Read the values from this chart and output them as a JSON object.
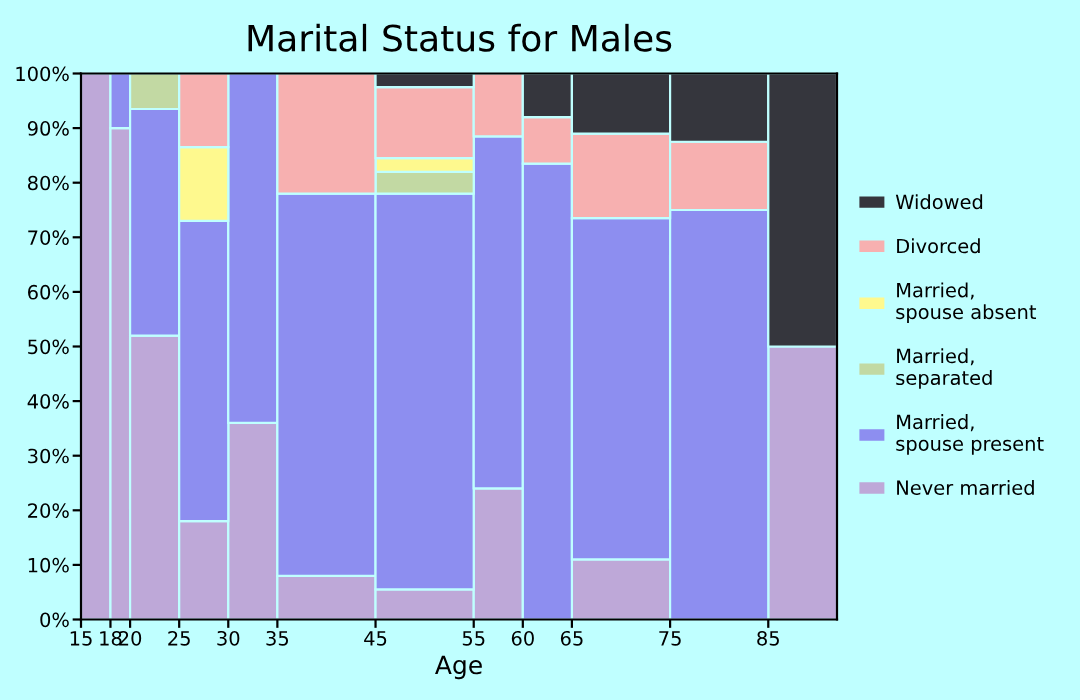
{
  "chart_data": {
    "type": "bar",
    "title": "Marital Status for Males",
    "xlabel": "Age",
    "stacked": true,
    "x": [
      16.5,
      19,
      22.5,
      27.5,
      32.5,
      40,
      50,
      57.5,
      62.5,
      70,
      80,
      88.5
    ],
    "xlim": [
      15,
      92
    ],
    "xticks": [
      15,
      18,
      20,
      25,
      30,
      35,
      45,
      55,
      60,
      65,
      75,
      85
    ],
    "ylim": [
      0,
      100
    ],
    "yticks": [
      {
        "value": 0,
        "label": "0%"
      },
      {
        "value": 10,
        "label": "10%"
      },
      {
        "value": 20,
        "label": "20%"
      },
      {
        "value": 30,
        "label": "30%"
      },
      {
        "value": 40,
        "label": "40%"
      },
      {
        "value": 50,
        "label": "50%"
      },
      {
        "value": 60,
        "label": "60%"
      },
      {
        "value": 70,
        "label": "70%"
      },
      {
        "value": 80,
        "label": "80%"
      },
      {
        "value": 90,
        "label": "90%"
      },
      {
        "value": 100,
        "label": "100%"
      }
    ],
    "grid": false,
    "legend": "right",
    "series": [
      {
        "name": "Never married",
        "color": "#bea8d8",
        "values": [
          100,
          90,
          52,
          18,
          36,
          8,
          5.5,
          24,
          0,
          11,
          0,
          50
        ]
      },
      {
        "name": "Married,\nspouse present",
        "color": "#8d8ef0",
        "values": [
          0,
          10,
          41.5,
          55,
          64,
          70,
          72.5,
          64.5,
          83.5,
          62.5,
          75,
          0
        ]
      },
      {
        "name": "Married,\nseparated",
        "color": "#c2d9a3",
        "values": [
          0,
          0,
          6.5,
          0,
          0,
          0,
          4,
          0,
          0,
          0,
          0,
          0
        ]
      },
      {
        "name": "Married,\nspouse absent",
        "color": "#fef98e",
        "values": [
          0,
          0,
          0,
          13.5,
          0,
          0,
          2.5,
          0,
          0,
          0,
          0,
          0
        ]
      },
      {
        "name": "Divorced",
        "color": "#f7b0b0",
        "values": [
          0,
          0,
          0,
          13.5,
          0,
          22,
          13,
          11.5,
          8.5,
          15.5,
          12.5,
          0
        ]
      },
      {
        "name": "Widowed",
        "color": "#35363d",
        "values": [
          0,
          0,
          0,
          0,
          0,
          0,
          2.5,
          0,
          8,
          11,
          12.5,
          50
        ]
      }
    ]
  }
}
